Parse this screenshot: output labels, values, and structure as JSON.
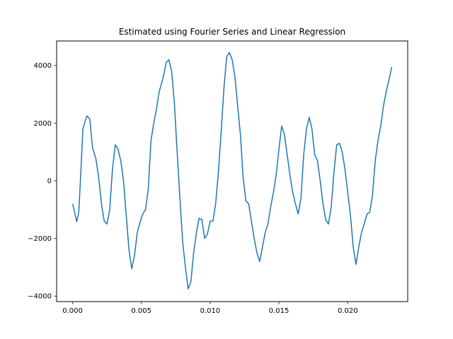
{
  "chart_data": {
    "type": "line",
    "title": "Estimated using Fourier Series and Linear Regression",
    "xlabel": "",
    "ylabel": "",
    "xlim": [
      -0.00116,
      0.02436
    ],
    "ylim": [
      -4190,
      4850
    ],
    "grid": false,
    "x_ticks": [
      "0.000",
      "0.005",
      "0.010",
      "0.015",
      "0.020"
    ],
    "x_tick_values": [
      0.0,
      0.005,
      0.01,
      0.015,
      0.02
    ],
    "y_ticks": [
      "−4000",
      "−2000",
      "0",
      "2000",
      "4000"
    ],
    "y_tick_values": [
      -4000,
      -2000,
      0,
      2000,
      4000
    ],
    "series": [
      {
        "color": "#1f77b4",
        "points": [
          [
            0.0,
            -800
          ],
          [
            0.00015,
            -1100
          ],
          [
            0.0003,
            -1420
          ],
          [
            0.00045,
            -1100
          ],
          [
            0.0006,
            300
          ],
          [
            0.00075,
            1800
          ],
          [
            0.0009,
            2050
          ],
          [
            0.00105,
            2250
          ],
          [
            0.00125,
            2150
          ],
          [
            0.00145,
            1150
          ],
          [
            0.0017,
            750
          ],
          [
            0.0019,
            100
          ],
          [
            0.0021,
            -800
          ],
          [
            0.0023,
            -1400
          ],
          [
            0.0025,
            -1500
          ],
          [
            0.0027,
            -1000
          ],
          [
            0.0029,
            400
          ],
          [
            0.0031,
            1250
          ],
          [
            0.0033,
            1100
          ],
          [
            0.0035,
            700
          ],
          [
            0.0037,
            0
          ],
          [
            0.0039,
            -1200
          ],
          [
            0.0041,
            -2400
          ],
          [
            0.0043,
            -3050
          ],
          [
            0.0045,
            -2600
          ],
          [
            0.0047,
            -1800
          ],
          [
            0.0049,
            -1450
          ],
          [
            0.0051,
            -1150
          ],
          [
            0.0053,
            -1000
          ],
          [
            0.0055,
            -300
          ],
          [
            0.0057,
            1400
          ],
          [
            0.0059,
            2000
          ],
          [
            0.0061,
            2500
          ],
          [
            0.0063,
            3100
          ],
          [
            0.0066,
            3600
          ],
          [
            0.0068,
            4100
          ],
          [
            0.007,
            4200
          ],
          [
            0.0072,
            3800
          ],
          [
            0.0074,
            2700
          ],
          [
            0.0076,
            1000
          ],
          [
            0.0078,
            -600
          ],
          [
            0.008,
            -2100
          ],
          [
            0.0082,
            -3000
          ],
          [
            0.0084,
            -3750
          ],
          [
            0.0086,
            -3500
          ],
          [
            0.0088,
            -2500
          ],
          [
            0.009,
            -1800
          ],
          [
            0.0092,
            -1300
          ],
          [
            0.0094,
            -1350
          ],
          [
            0.0096,
            -2000
          ],
          [
            0.0098,
            -1850
          ],
          [
            0.01,
            -1400
          ],
          [
            0.0102,
            -1400
          ],
          [
            0.0104,
            -800
          ],
          [
            0.0106,
            300
          ],
          [
            0.0108,
            1700
          ],
          [
            0.011,
            3200
          ],
          [
            0.0112,
            4300
          ],
          [
            0.0114,
            4450
          ],
          [
            0.0116,
            4200
          ],
          [
            0.0118,
            3600
          ],
          [
            0.012,
            2600
          ],
          [
            0.0122,
            1600
          ],
          [
            0.0124,
            100
          ],
          [
            0.0126,
            -700
          ],
          [
            0.0128,
            -800
          ],
          [
            0.013,
            -1400
          ],
          [
            0.0132,
            -2000
          ],
          [
            0.0134,
            -2500
          ],
          [
            0.0136,
            -2800
          ],
          [
            0.0138,
            -2300
          ],
          [
            0.014,
            -1800
          ],
          [
            0.0142,
            -1500
          ],
          [
            0.0144,
            -900
          ],
          [
            0.0146,
            -400
          ],
          [
            0.0148,
            200
          ],
          [
            0.015,
            1100
          ],
          [
            0.0152,
            1900
          ],
          [
            0.0154,
            1600
          ],
          [
            0.0156,
            900
          ],
          [
            0.0158,
            200
          ],
          [
            0.016,
            -400
          ],
          [
            0.0162,
            -800
          ],
          [
            0.0164,
            -1150
          ],
          [
            0.0166,
            -600
          ],
          [
            0.0168,
            900
          ],
          [
            0.017,
            1800
          ],
          [
            0.0172,
            2200
          ],
          [
            0.0174,
            1800
          ],
          [
            0.0176,
            900
          ],
          [
            0.0178,
            700
          ],
          [
            0.018,
            0
          ],
          [
            0.0182,
            -800
          ],
          [
            0.0184,
            -1350
          ],
          [
            0.0186,
            -1500
          ],
          [
            0.0188,
            -900
          ],
          [
            0.019,
            300
          ],
          [
            0.0192,
            1250
          ],
          [
            0.0194,
            1300
          ],
          [
            0.0196,
            1000
          ],
          [
            0.0198,
            400
          ],
          [
            0.02,
            -400
          ],
          [
            0.0202,
            -1200
          ],
          [
            0.0204,
            -2300
          ],
          [
            0.0206,
            -2900
          ],
          [
            0.0208,
            -2300
          ],
          [
            0.021,
            -1800
          ],
          [
            0.0212,
            -1500
          ],
          [
            0.0214,
            -1150
          ],
          [
            0.0216,
            -1100
          ],
          [
            0.0218,
            -500
          ],
          [
            0.022,
            700
          ],
          [
            0.0222,
            1400
          ],
          [
            0.0224,
            1900
          ],
          [
            0.0226,
            2600
          ],
          [
            0.0228,
            3100
          ],
          [
            0.023,
            3500
          ],
          [
            0.0232,
            3950
          ]
        ]
      }
    ]
  }
}
